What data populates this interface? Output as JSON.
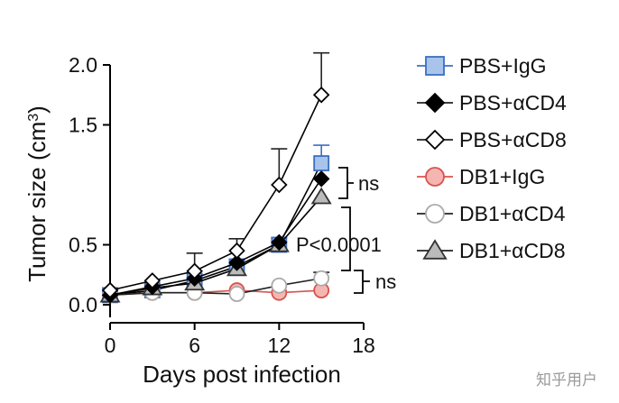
{
  "chart_data": {
    "type": "line",
    "title": "",
    "xlabel": "Days post infection",
    "ylabel_main": "Tumor size (cm",
    "ylabel_sup": "3",
    "ylabel_close": ")",
    "xlim": [
      0,
      18
    ],
    "ylim": [
      0,
      2.0
    ],
    "x_ticks": [
      0,
      6,
      12,
      18
    ],
    "x_tick_labels": [
      "0",
      "6",
      "12",
      "18"
    ],
    "y_ticks": [
      0,
      0.5,
      1.5,
      2.0
    ],
    "y_tick_labels": [
      "0.0",
      "0.5",
      "1.5",
      "2.0"
    ],
    "grid": false,
    "legend_position": "right",
    "x": [
      0,
      3,
      6,
      9,
      12,
      15
    ],
    "series": [
      {
        "name": "PBS+IgG",
        "marker": "square",
        "stroke": "#3a6fc4",
        "fill": "#a9c4ea",
        "values": [
          0.08,
          0.12,
          0.2,
          0.32,
          0.5,
          1.18
        ],
        "err": [
          0,
          0,
          0.02,
          0.04,
          0.06,
          0.15
        ]
      },
      {
        "name": "PBS+αCD4",
        "marker": "diamond",
        "stroke": "#000000",
        "fill": "#000000",
        "values": [
          0.08,
          0.15,
          0.22,
          0.35,
          0.52,
          1.05
        ],
        "err": [
          0,
          0,
          0,
          0,
          0,
          0
        ]
      },
      {
        "name": "PBS+αCD8",
        "marker": "diamond",
        "stroke": "#000000",
        "fill": "#ffffff",
        "values": [
          0.12,
          0.2,
          0.28,
          0.45,
          1.0,
          1.75
        ],
        "err": [
          0,
          0,
          0.15,
          0.1,
          0.3,
          0.35
        ]
      },
      {
        "name": "DB1+IgG",
        "marker": "circle",
        "stroke": "#d9534f",
        "fill": "#f5b6b1",
        "values": [
          0.08,
          0.1,
          0.1,
          0.12,
          0.1,
          0.12
        ],
        "err": [
          0,
          0,
          0,
          0,
          0,
          0
        ]
      },
      {
        "name": "DB1+αCD4",
        "marker": "circle",
        "stroke": "#aaaaaa",
        "fill": "#ffffff",
        "values": [
          0.08,
          0.1,
          0.1,
          0.09,
          0.16,
          0.22
        ],
        "err": [
          0,
          0,
          0,
          0,
          0,
          0.05
        ]
      },
      {
        "name": "DB1+αCD8",
        "marker": "triangle",
        "stroke": "#333333",
        "fill": "#bbbbbb",
        "values": [
          0.08,
          0.14,
          0.18,
          0.3,
          0.5,
          0.9
        ],
        "err": [
          0,
          0,
          0,
          0,
          0,
          0
        ]
      }
    ],
    "annotations": {
      "ns_top": "ns",
      "pvalue": "P<0.0001",
      "ns_bottom": "ns"
    }
  },
  "watermark": "知乎用户"
}
